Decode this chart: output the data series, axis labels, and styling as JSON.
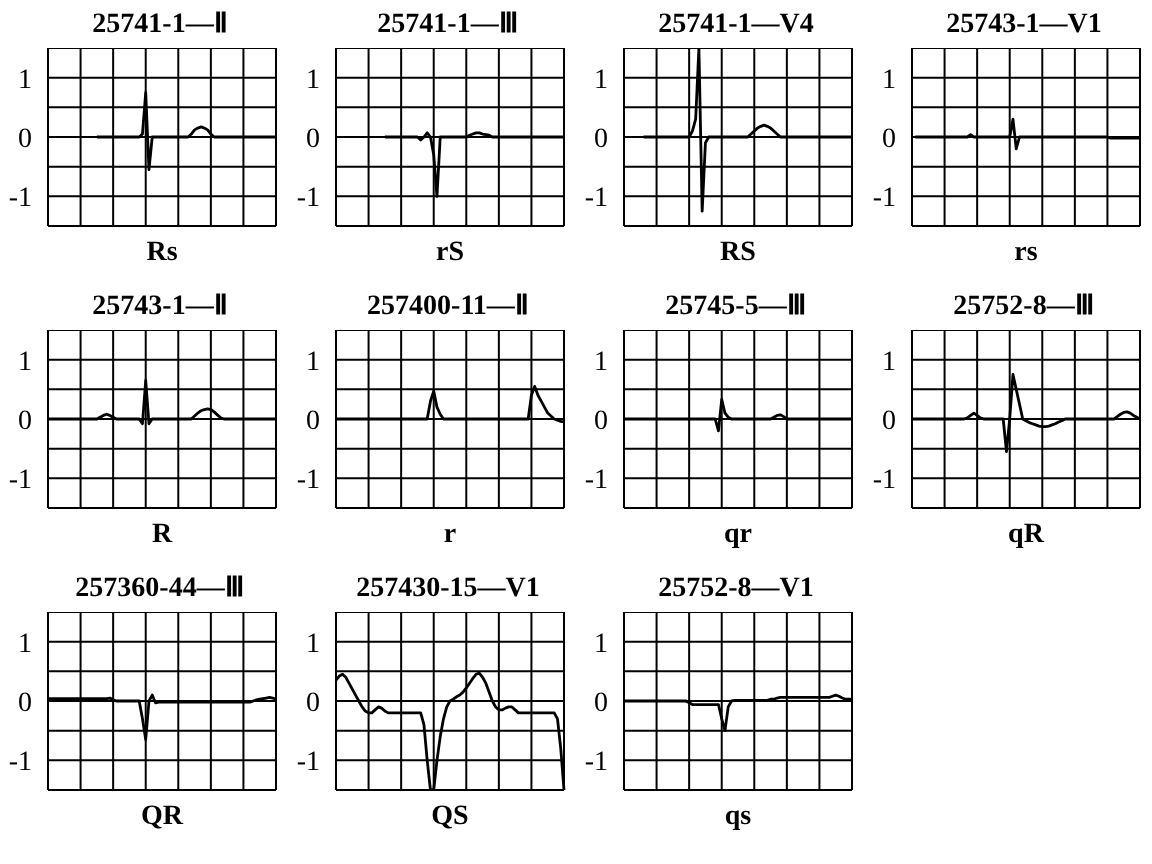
{
  "chart_data": [
    {
      "type": "line",
      "title": "25741-1—Ⅱ",
      "xlabel": "Rs",
      "color": "#000000",
      "marker": "none",
      "grid": true,
      "tick_labels": "y",
      "ylim": [
        -1.5,
        1.5
      ],
      "yticks": [
        {
          "value": -1.5,
          "label": null
        },
        -1,
        {
          "value": -0.5,
          "label": null
        },
        0,
        {
          "value": 0.5,
          "label": null
        },
        1
      ],
      "categories": [
        null,
        null,
        null,
        null,
        null,
        null,
        null,
        null,
        null,
        null,
        null,
        null,
        null,
        null,
        null,
        null,
        null,
        null,
        null,
        null,
        null,
        null,
        null,
        null,
        null,
        null,
        null,
        null,
        null,
        null,
        null,
        null,
        null,
        null,
        null,
        null,
        null,
        null,
        null,
        null,
        null,
        null,
        null,
        null,
        null,
        null,
        null,
        null,
        null,
        null,
        null,
        null,
        null,
        null,
        null,
        null,
        null,
        null,
        null,
        null,
        null,
        null,
        null,
        null,
        null,
        null,
        null,
        null,
        null,
        null,
        null
      ],
      "values": [
        null,
        null,
        null,
        null,
        null,
        null,
        null,
        null,
        null,
        null,
        null,
        null,
        null,
        null,
        null,
        0,
        0,
        0,
        0,
        0,
        0,
        0,
        0,
        0,
        0,
        0,
        0,
        0,
        0,
        0.05,
        0.75,
        -0.55,
        0,
        0,
        0,
        0,
        0,
        0,
        0,
        0,
        0,
        0,
        0,
        0,
        0.05,
        0.12,
        0.15,
        0.17,
        0.15,
        0.12,
        0.05,
        0,
        0,
        0,
        0,
        0,
        0,
        0,
        0,
        0,
        0,
        0,
        0,
        0,
        0,
        0,
        0,
        0,
        0,
        0,
        0
      ]
    },
    {
      "type": "line",
      "title": "25741-1—Ⅲ",
      "xlabel": "rS",
      "color": "#000000",
      "marker": "none",
      "grid": true,
      "tick_labels": "y",
      "ylim": [
        -1.5,
        1.5
      ],
      "yticks": [
        {
          "value": -1.5,
          "label": null
        },
        -1,
        {
          "value": -0.5,
          "label": null
        },
        0,
        {
          "value": 0.5,
          "label": null
        },
        1
      ],
      "categories": [
        null,
        null,
        null,
        null,
        null,
        null,
        null,
        null,
        null,
        null,
        null,
        null,
        null,
        null,
        null,
        null,
        null,
        null,
        null,
        null,
        null,
        null,
        null,
        null,
        null,
        null,
        null,
        null,
        null,
        null,
        null,
        null,
        null,
        null,
        null,
        null,
        null,
        null,
        null,
        null,
        null,
        null,
        null,
        null,
        null,
        null,
        null,
        null,
        null,
        null,
        null,
        null,
        null,
        null,
        null,
        null,
        null,
        null,
        null,
        null,
        null,
        null,
        null,
        null,
        null,
        null,
        null,
        null,
        null,
        null,
        null
      ],
      "values": [
        null,
        null,
        null,
        null,
        null,
        null,
        null,
        null,
        null,
        null,
        null,
        null,
        null,
        null,
        null,
        0,
        0,
        0,
        0,
        0,
        0,
        0,
        0,
        0,
        0,
        0,
        -0.05,
        0,
        0.07,
        0,
        -0.3,
        -1.0,
        0,
        0,
        0,
        0,
        0,
        0,
        0,
        0,
        0,
        0.03,
        0.05,
        0.07,
        0.07,
        0.05,
        0.04,
        0.03,
        0,
        0,
        0,
        0,
        0,
        0,
        0,
        0,
        0,
        0,
        0,
        0,
        0,
        0,
        0,
        0,
        0,
        0,
        0,
        0,
        0,
        0,
        0
      ]
    },
    {
      "type": "line",
      "title": "25741-1—V4",
      "xlabel": "RS",
      "color": "#000000",
      "marker": "none",
      "grid": true,
      "tick_labels": "y",
      "ylim": [
        -1.5,
        1.5
      ],
      "yticks": [
        {
          "value": -1.5,
          "label": null
        },
        -1,
        {
          "value": -0.5,
          "label": null
        },
        0,
        {
          "value": 0.5,
          "label": null
        },
        1
      ],
      "categories": [
        null,
        null,
        null,
        null,
        null,
        null,
        null,
        null,
        null,
        null,
        null,
        null,
        null,
        null,
        null,
        null,
        null,
        null,
        null,
        null,
        null,
        null,
        null,
        null,
        null,
        null,
        null,
        null,
        null,
        null,
        null,
        null,
        null,
        null,
        null,
        null,
        null,
        null,
        null,
        null,
        null,
        null,
        null,
        null,
        null,
        null,
        null,
        null,
        null,
        null,
        null,
        null,
        null,
        null,
        null,
        null,
        null,
        null,
        null,
        null,
        null,
        null,
        null,
        null,
        null,
        null,
        null,
        null,
        null,
        null,
        null
      ],
      "values": [
        null,
        null,
        null,
        null,
        null,
        null,
        0,
        0,
        0,
        0,
        0,
        0,
        0,
        0,
        0,
        0,
        0,
        0,
        0,
        0,
        0,
        0.1,
        0.3,
        1.5,
        -1.25,
        -0.1,
        0,
        0,
        0,
        0,
        0,
        0,
        0,
        0,
        0,
        0,
        0,
        0,
        0,
        0.05,
        0.1,
        0.15,
        0.18,
        0.2,
        0.18,
        0.15,
        0.1,
        0.05,
        0,
        0,
        0,
        0,
        0,
        0,
        0,
        0,
        0,
        0,
        0,
        0,
        0,
        0,
        0,
        0,
        0,
        0,
        0,
        0,
        0,
        0,
        0
      ]
    },
    {
      "type": "line",
      "title": "25743-1—V1",
      "xlabel": "rs",
      "color": "#000000",
      "marker": "none",
      "grid": true,
      "tick_labels": "y",
      "ylim": [
        -1.5,
        1.5
      ],
      "yticks": [
        {
          "value": -1.5,
          "label": null
        },
        -1,
        {
          "value": -0.5,
          "label": null
        },
        0,
        {
          "value": 0.5,
          "label": null
        },
        1
      ],
      "categories": [
        null,
        null,
        null,
        null,
        null,
        null,
        null,
        null,
        null,
        null,
        null,
        null,
        null,
        null,
        null,
        null,
        null,
        null,
        null,
        null,
        null,
        null,
        null,
        null,
        null,
        null,
        null,
        null,
        null,
        null,
        null,
        null,
        null,
        null,
        null,
        null,
        null,
        null,
        null,
        null,
        null,
        null,
        null,
        null,
        null,
        null,
        null,
        null,
        null,
        null,
        null,
        null,
        null,
        null,
        null,
        null,
        null,
        null,
        null,
        null,
        null,
        null,
        null,
        null,
        null,
        null,
        null,
        null,
        null,
        null,
        null
      ],
      "values": [
        null,
        0,
        0,
        0,
        0,
        0,
        0,
        0,
        0,
        0,
        0,
        0,
        0,
        0,
        0,
        0,
        0,
        0,
        0.04,
        0,
        0,
        0,
        0,
        0,
        0,
        0,
        0,
        0,
        0,
        0,
        0,
        0.3,
        -0.2,
        0,
        0,
        0,
        0,
        0,
        0,
        0,
        0,
        0,
        0,
        0,
        0,
        0,
        0,
        0,
        0,
        0,
        0,
        0,
        0,
        0,
        0,
        0,
        0,
        0,
        0,
        0,
        0,
        -0.02,
        -0.02,
        -0.02,
        -0.02,
        -0.02,
        -0.02,
        -0.02,
        -0.02,
        -0.02,
        -0.02
      ]
    },
    {
      "type": "line",
      "title": "25743-1—Ⅱ",
      "xlabel": "R",
      "color": "#000000",
      "marker": "none",
      "grid": true,
      "tick_labels": "y",
      "ylim": [
        -1.5,
        1.5
      ],
      "yticks": [
        {
          "value": -1.5,
          "label": null
        },
        -1,
        {
          "value": -0.5,
          "label": null
        },
        0,
        {
          "value": 0.5,
          "label": null
        },
        1
      ],
      "categories": [
        null,
        null,
        null,
        null,
        null,
        null,
        null,
        null,
        null,
        null,
        null,
        null,
        null,
        null,
        null,
        null,
        null,
        null,
        null,
        null,
        null,
        null,
        null,
        null,
        null,
        null,
        null,
        null,
        null,
        null,
        null,
        null,
        null,
        null,
        null,
        null,
        null,
        null,
        null,
        null,
        null,
        null,
        null,
        null,
        null,
        null,
        null,
        null,
        null,
        null,
        null,
        null,
        null,
        null,
        null,
        null,
        null,
        null,
        null,
        null,
        null,
        null,
        null,
        null,
        null,
        null,
        null,
        null,
        null,
        null,
        null
      ],
      "values": [
        0,
        0,
        0,
        0,
        0,
        0,
        0,
        0,
        0,
        0,
        0,
        0,
        0,
        0,
        0,
        0,
        0.03,
        0.06,
        0.08,
        0.06,
        0.03,
        0,
        0,
        0,
        0,
        0,
        0,
        0,
        0,
        -0.08,
        0.65,
        -0.08,
        0,
        0,
        0,
        0,
        0,
        0,
        0,
        0,
        0,
        0,
        0,
        0,
        0,
        0.05,
        0.1,
        0.14,
        0.16,
        0.17,
        0.16,
        0.12,
        0.07,
        0.02,
        0,
        0,
        0,
        0,
        0,
        0,
        0,
        0,
        0,
        0,
        0,
        0,
        0,
        0,
        0,
        0,
        0
      ]
    },
    {
      "type": "line",
      "title": "257400-11—Ⅱ",
      "xlabel": "r",
      "color": "#000000",
      "marker": "none",
      "grid": true,
      "tick_labels": "y",
      "ylim": [
        -1.5,
        1.5
      ],
      "yticks": [
        {
          "value": -1.5,
          "label": null
        },
        -1,
        {
          "value": -0.5,
          "label": null
        },
        0,
        {
          "value": 0.5,
          "label": null
        },
        1
      ],
      "categories": [
        null,
        null,
        null,
        null,
        null,
        null,
        null,
        null,
        null,
        null,
        null,
        null,
        null,
        null,
        null,
        null,
        null,
        null,
        null,
        null,
        null,
        null,
        null,
        null,
        null,
        null,
        null,
        null,
        null,
        null,
        null,
        null,
        null,
        null,
        null,
        null,
        null,
        null,
        null,
        null,
        null,
        null,
        null,
        null,
        null,
        null,
        null,
        null,
        null,
        null,
        null,
        null,
        null,
        null,
        null,
        null,
        null,
        null,
        null,
        null,
        null,
        null,
        null,
        null,
        null,
        null,
        null,
        null,
        null,
        null,
        null
      ],
      "values": [
        0,
        0,
        0,
        0,
        0,
        0,
        0,
        0,
        0,
        0,
        0,
        0,
        0,
        0,
        0,
        0,
        0,
        0,
        0,
        0,
        0,
        0,
        0,
        0,
        0,
        0,
        0,
        0,
        0,
        0.3,
        0.47,
        0.2,
        0.08,
        0,
        0,
        0,
        0,
        0,
        0,
        0,
        0,
        0,
        0,
        0,
        0,
        0,
        0,
        0,
        0,
        0,
        0,
        0,
        0,
        0,
        0,
        0,
        0,
        0,
        0,
        0,
        0.4,
        0.55,
        0.4,
        0.3,
        0.2,
        0.1,
        0.05,
        0,
        -0.02,
        -0.04,
        -0.05
      ]
    },
    {
      "type": "line",
      "title": "25745-5—Ⅲ",
      "xlabel": "qr",
      "color": "#000000",
      "marker": "none",
      "grid": true,
      "tick_labels": "y",
      "ylim": [
        -1.5,
        1.5
      ],
      "yticks": [
        {
          "value": -1.5,
          "label": null
        },
        -1,
        {
          "value": -0.5,
          "label": null
        },
        0,
        {
          "value": 0.5,
          "label": null
        },
        1
      ],
      "categories": [
        null,
        null,
        null,
        null,
        null,
        null,
        null,
        null,
        null,
        null,
        null,
        null,
        null,
        null,
        null,
        null,
        null,
        null,
        null,
        null,
        null,
        null,
        null,
        null,
        null,
        null,
        null,
        null,
        null,
        null,
        null,
        null,
        null,
        null,
        null,
        null,
        null,
        null,
        null,
        null,
        null,
        null,
        null,
        null,
        null,
        null,
        null,
        null,
        null,
        null,
        null,
        null,
        null,
        null,
        null,
        null,
        null,
        null,
        null,
        null,
        null,
        null,
        null,
        null,
        null,
        null,
        null,
        null,
        null,
        null,
        null
      ],
      "values": [
        0,
        0,
        0,
        0,
        0,
        0,
        0,
        0,
        0,
        0,
        0,
        0,
        0,
        0,
        0,
        0,
        0,
        0,
        0,
        0,
        0,
        0,
        0,
        0,
        0,
        0,
        0,
        0,
        0,
        -0.2,
        0.33,
        0.1,
        0.03,
        0,
        0,
        0,
        0,
        0,
        0,
        0,
        0,
        0,
        0,
        0,
        0,
        0,
        0.03,
        0.06,
        0.07,
        0.04,
        0,
        0,
        0,
        0,
        0,
        0,
        0,
        0,
        0,
        0,
        0,
        0,
        0,
        0,
        0,
        0,
        0,
        0,
        0,
        0,
        0
      ]
    },
    {
      "type": "line",
      "title": "25752-8—Ⅲ",
      "xlabel": "qR",
      "color": "#000000",
      "marker": "none",
      "grid": true,
      "tick_labels": "y",
      "ylim": [
        -1.5,
        1.5
      ],
      "yticks": [
        {
          "value": -1.5,
          "label": null
        },
        -1,
        {
          "value": -0.5,
          "label": null
        },
        0,
        {
          "value": 0.5,
          "label": null
        },
        1
      ],
      "categories": [
        null,
        null,
        null,
        null,
        null,
        null,
        null,
        null,
        null,
        null,
        null,
        null,
        null,
        null,
        null,
        null,
        null,
        null,
        null,
        null,
        null,
        null,
        null,
        null,
        null,
        null,
        null,
        null,
        null,
        null,
        null,
        null,
        null,
        null,
        null,
        null,
        null,
        null,
        null,
        null,
        null,
        null,
        null,
        null,
        null,
        null,
        null,
        null,
        null,
        null,
        null,
        null,
        null,
        null,
        null,
        null,
        null,
        null,
        null,
        null,
        null,
        null,
        null,
        null,
        null,
        null,
        null,
        null,
        null,
        null,
        null
      ],
      "values": [
        0,
        0,
        0,
        0,
        0,
        0,
        0,
        0,
        0,
        0,
        0,
        0,
        0,
        0,
        0,
        0,
        0,
        0.02,
        0.06,
        0.1,
        0.06,
        0.02,
        0,
        0,
        0,
        0,
        0,
        0,
        0,
        -0.55,
        0,
        0.75,
        0.5,
        0.25,
        0,
        -0.03,
        -0.06,
        -0.08,
        -0.1,
        -0.12,
        -0.13,
        -0.13,
        -0.12,
        -0.1,
        -0.08,
        -0.05,
        -0.03,
        0,
        0,
        0,
        0,
        0,
        0,
        0,
        0,
        0,
        0,
        0,
        0,
        0,
        0,
        0,
        0,
        0.04,
        0.08,
        0.11,
        0.12,
        0.1,
        0.06,
        0.03,
        0
      ]
    },
    {
      "type": "line",
      "title": "257360-44—Ⅲ",
      "xlabel": "QR",
      "color": "#000000",
      "marker": "none",
      "grid": true,
      "tick_labels": "y",
      "ylim": [
        -1.5,
        1.5
      ],
      "yticks": [
        {
          "value": -1.5,
          "label": null
        },
        -1,
        {
          "value": -0.5,
          "label": null
        },
        0,
        {
          "value": 0.5,
          "label": null
        },
        1
      ],
      "categories": [
        null,
        null,
        null,
        null,
        null,
        null,
        null,
        null,
        null,
        null,
        null,
        null,
        null,
        null,
        null,
        null,
        null,
        null,
        null,
        null,
        null,
        null,
        null,
        null,
        null,
        null,
        null,
        null,
        null,
        null,
        null,
        null,
        null,
        null,
        null,
        null,
        null,
        null,
        null,
        null,
        null,
        null,
        null,
        null,
        null,
        null,
        null,
        null,
        null,
        null,
        null,
        null,
        null,
        null,
        null,
        null,
        null,
        null,
        null,
        null,
        null,
        null,
        null,
        null,
        null,
        null,
        null,
        null,
        null,
        null,
        null
      ],
      "values": [
        0.04,
        0.04,
        0.04,
        0.04,
        0.04,
        0.04,
        0.04,
        0.04,
        0.04,
        0.04,
        0.04,
        0.04,
        0.04,
        0.04,
        0.04,
        0.04,
        0.04,
        0.04,
        0.04,
        0.05,
        0.02,
        0,
        0,
        0,
        0,
        0,
        0,
        0,
        0,
        -0.3,
        -0.65,
        0,
        0.1,
        -0.03,
        -0.02,
        -0.02,
        -0.02,
        -0.02,
        -0.02,
        -0.02,
        -0.02,
        -0.02,
        -0.02,
        -0.02,
        -0.02,
        -0.02,
        -0.02,
        -0.02,
        -0.02,
        -0.02,
        -0.02,
        -0.02,
        -0.02,
        -0.02,
        -0.02,
        -0.02,
        -0.02,
        -0.02,
        -0.02,
        -0.02,
        -0.02,
        -0.02,
        -0.02,
        0,
        0.02,
        0.03,
        0.04,
        0.05,
        0.06,
        0.05,
        0.03
      ]
    },
    {
      "type": "line",
      "title": "257430-15—V1",
      "xlabel": "QS",
      "color": "#000000",
      "marker": "none",
      "grid": true,
      "tick_labels": "y",
      "ylim": [
        -1.5,
        1.5
      ],
      "yticks": [
        {
          "value": -1.5,
          "label": null
        },
        -1,
        {
          "value": -0.5,
          "label": null
        },
        0,
        {
          "value": 0.5,
          "label": null
        },
        1
      ],
      "categories": [
        null,
        null,
        null,
        null,
        null,
        null,
        null,
        null,
        null,
        null,
        null,
        null,
        null,
        null,
        null,
        null,
        null,
        null,
        null,
        null,
        null,
        null,
        null,
        null,
        null,
        null,
        null,
        null,
        null,
        null,
        null,
        null,
        null,
        null,
        null,
        null,
        null,
        null,
        null,
        null,
        null,
        null,
        null,
        null,
        null,
        null,
        null,
        null,
        null,
        null,
        null,
        null,
        null,
        null,
        null,
        null,
        null,
        null,
        null,
        null,
        null,
        null,
        null,
        null,
        null,
        null,
        null,
        null,
        null,
        null,
        null
      ],
      "values": [
        0.35,
        0.42,
        0.45,
        0.4,
        0.3,
        0.2,
        0.1,
        0,
        -0.1,
        -0.17,
        -0.2,
        -0.2,
        -0.15,
        -0.1,
        -0.12,
        -0.17,
        -0.2,
        -0.2,
        -0.2,
        -0.2,
        -0.2,
        -0.2,
        -0.2,
        -0.2,
        -0.2,
        -0.2,
        -0.2,
        -0.4,
        -1.0,
        -1.5,
        -1.5,
        -1.0,
        -0.6,
        -0.3,
        -0.1,
        0,
        0.03,
        0.07,
        0.1,
        0.15,
        0.22,
        0.3,
        0.38,
        0.45,
        0.47,
        0.4,
        0.3,
        0.15,
        0,
        -0.1,
        -0.15,
        -0.15,
        -0.12,
        -0.1,
        -0.1,
        -0.15,
        -0.2,
        -0.2,
        -0.2,
        -0.2,
        -0.2,
        -0.2,
        -0.2,
        -0.2,
        -0.2,
        -0.2,
        -0.2,
        -0.2,
        -0.3,
        -0.8,
        -1.5
      ]
    },
    {
      "type": "line",
      "title": "25752-8—V1",
      "xlabel": "qs",
      "color": "#000000",
      "marker": "none",
      "grid": true,
      "tick_labels": "y",
      "ylim": [
        -1.5,
        1.5
      ],
      "yticks": [
        {
          "value": -1.5,
          "label": null
        },
        -1,
        {
          "value": -0.5,
          "label": null
        },
        0,
        {
          "value": 0.5,
          "label": null
        },
        1
      ],
      "categories": [
        null,
        null,
        null,
        null,
        null,
        null,
        null,
        null,
        null,
        null,
        null,
        null,
        null,
        null,
        null,
        null,
        null,
        null,
        null,
        null,
        null,
        null,
        null,
        null,
        null,
        null,
        null,
        null,
        null,
        null,
        null,
        null,
        null,
        null,
        null,
        null,
        null,
        null,
        null,
        null,
        null,
        null,
        null,
        null,
        null,
        null,
        null,
        null,
        null,
        null,
        null,
        null,
        null,
        null,
        null,
        null,
        null,
        null,
        null,
        null,
        null,
        null,
        null,
        null,
        null,
        null,
        null,
        null,
        null,
        null,
        null
      ],
      "values": [
        0,
        0,
        0,
        0,
        0,
        0,
        0,
        0,
        0,
        0,
        0,
        0,
        0,
        0,
        0,
        0,
        0,
        0,
        0,
        0,
        -0.03,
        -0.06,
        -0.06,
        -0.06,
        -0.06,
        -0.06,
        -0.06,
        -0.06,
        -0.06,
        -0.06,
        -0.3,
        -0.5,
        -0.1,
        0,
        0.01,
        0.01,
        0.01,
        0.01,
        0.01,
        0.01,
        0.01,
        0.01,
        0.01,
        0.01,
        0.01,
        0.03,
        0.03,
        0.05,
        0.06,
        0.06,
        0.06,
        0.06,
        0.06,
        0.06,
        0.06,
        0.06,
        0.06,
        0.06,
        0.06,
        0.06,
        0.06,
        0.06,
        0.06,
        0.06,
        0.08,
        0.1,
        0.08,
        0.05,
        0.03,
        0.03,
        0.03
      ]
    }
  ]
}
